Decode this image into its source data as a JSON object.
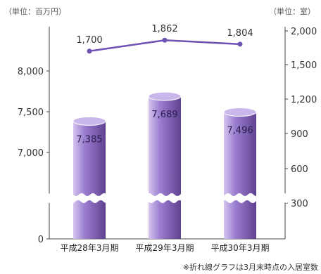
{
  "chart_data": {
    "type": "bar",
    "categories": [
      "平成28年3月期",
      "平成29年3月期",
      "平成30年3月期"
    ],
    "series": [
      {
        "type": "bar",
        "axis": "left",
        "values": [
          7385,
          7689,
          7496
        ]
      },
      {
        "type": "line",
        "axis": "right",
        "values": [
          1700,
          1862,
          1804
        ]
      }
    ],
    "left_axis": {
      "unit": "（単位：百万円）",
      "ticks": [
        0,
        7000,
        7500,
        8000
      ],
      "tick_labels": [
        "0",
        "7,000",
        "7,500",
        "8,000"
      ],
      "broken": true
    },
    "right_axis": {
      "unit": "（単位：室）",
      "ticks": [
        300,
        600,
        900,
        1200,
        1500,
        2000
      ],
      "tick_labels": [
        "300",
        "600",
        "900",
        "1,200",
        "1,500",
        "2,000"
      ],
      "broken": true
    },
    "bar_labels": [
      "7,385",
      "7,689",
      "7,496"
    ],
    "line_labels": [
      "1,700",
      "1,862",
      "1,804"
    ],
    "note": "※折れ線グラフは3月末時点の入居室数",
    "colors": {
      "bar_light": "#d6c5ef",
      "bar_mid": "#9b7ed0",
      "bar_dark": "#5e4290",
      "bar_top": "#c9b6ea",
      "line": "#6d52b3"
    }
  }
}
